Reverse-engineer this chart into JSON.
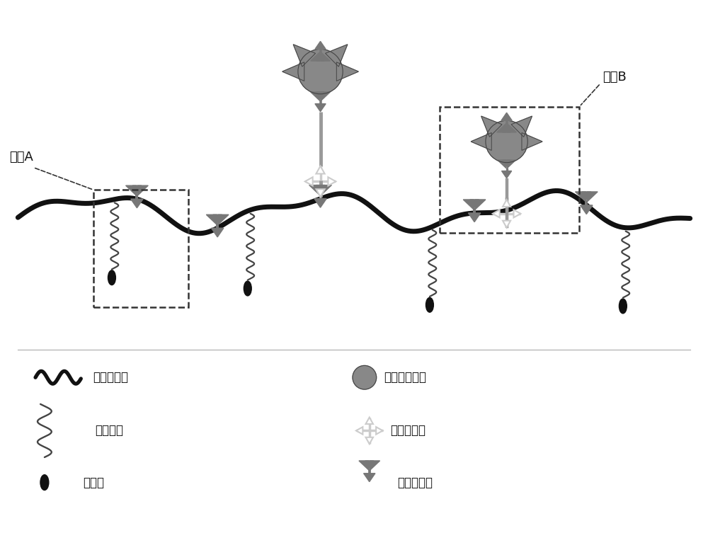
{
  "bg_color": "#ffffff",
  "np_color": "#888888",
  "biotin_color": "#777777",
  "membrane_color": "#111111",
  "peg_color": "#444444",
  "avidin_color": "#bbbbbb",
  "box_color": "#333333",
  "label_A": "组分A",
  "label_B": "组分B",
  "legend_items": [
    {
      "label": "壳聚糖骨架"
    },
    {
      "label": "聚乙二醇"
    },
    {
      "label": "胆固醇"
    },
    {
      "label": "荧光纳米粒子"
    },
    {
      "label": "亲和素分子"
    },
    {
      "label": "生物素分子"
    }
  ]
}
